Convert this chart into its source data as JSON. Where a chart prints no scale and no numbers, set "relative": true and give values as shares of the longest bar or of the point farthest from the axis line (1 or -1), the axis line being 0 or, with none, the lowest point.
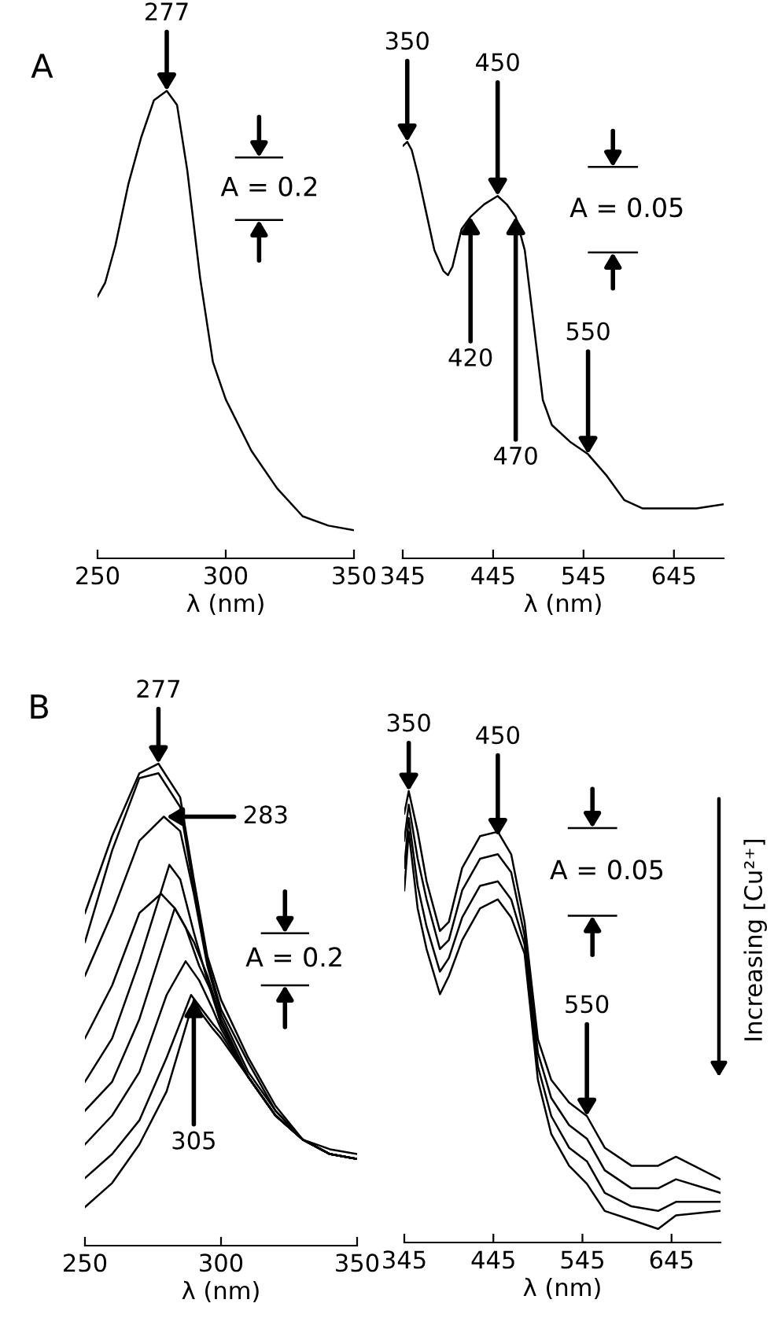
{
  "chart_data": [
    {
      "type": "line",
      "relative": true,
      "xlabel": "λ (nm)",
      "xlim": [
        250,
        350
      ],
      "xticks": [
        250,
        300,
        350
      ],
      "tick_labels": "x",
      "grid": false,
      "legend": false,
      "annotations": [
        "A",
        {
          "text": "277",
          "x": 277,
          "y": 1.0
        },
        "A = 0.2"
      ],
      "series": [
        {
          "color": "#000000",
          "x": [
            250,
            253,
            257,
            262,
            267,
            272,
            277,
            281,
            285,
            290,
            295,
            300,
            310,
            320,
            330,
            340,
            350
          ],
          "values": [
            0.56,
            0.59,
            0.67,
            0.8,
            0.9,
            0.98,
            1.0,
            0.97,
            0.83,
            0.6,
            0.42,
            0.34,
            0.23,
            0.15,
            0.09,
            0.07,
            0.06
          ]
        }
      ]
    },
    {
      "type": "line",
      "relative": true,
      "xlabel": "λ (nm)",
      "xlim": [
        345,
        700
      ],
      "xticks": [
        345,
        445,
        545,
        645
      ],
      "tick_labels": "x",
      "grid": false,
      "legend": false,
      "annotations": [
        {
          "text": "350",
          "x": 350,
          "y": 1.0
        },
        {
          "text": "450",
          "x": 450,
          "y": 0.87
        },
        {
          "text": "420",
          "x": 420,
          "y": 0.82
        },
        {
          "text": "470",
          "x": 470,
          "y": 0.82
        },
        {
          "text": "550",
          "x": 550,
          "y": 0.25
        },
        "A = 0.05"
      ],
      "series": [
        {
          "color": "#000000",
          "x": [
            345,
            350,
            355,
            362,
            370,
            380,
            390,
            395,
            400,
            410,
            420,
            435,
            450,
            460,
            470,
            480,
            490,
            500,
            510,
            530,
            550,
            570,
            590,
            610,
            630,
            650,
            670,
            700
          ],
          "values": [
            0.99,
            1.0,
            0.98,
            0.92,
            0.84,
            0.74,
            0.69,
            0.68,
            0.7,
            0.79,
            0.82,
            0.85,
            0.87,
            0.85,
            0.82,
            0.74,
            0.56,
            0.38,
            0.32,
            0.28,
            0.25,
            0.2,
            0.14,
            0.12,
            0.12,
            0.12,
            0.12,
            0.13
          ]
        }
      ]
    },
    {
      "type": "line",
      "relative": true,
      "xlabel": "λ (nm)",
      "xlim": [
        250,
        350
      ],
      "xticks": [
        250,
        300,
        350
      ],
      "tick_labels": "x",
      "grid": false,
      "legend": false,
      "annotations": [
        "B",
        {
          "text": "277",
          "x": 277,
          "y": 1.0
        },
        "283",
        {
          "text": "305",
          "x": 290,
          "y": 0.51
        },
        "A = 0.2"
      ],
      "series": [
        {
          "color": "#000000",
          "x": [
            250,
            260,
            270,
            277,
            285,
            290,
            295,
            300,
            310,
            320,
            330,
            340,
            350
          ],
          "values": [
            0.69,
            0.85,
            0.98,
            1.0,
            0.93,
            0.76,
            0.6,
            0.51,
            0.39,
            0.29,
            0.22,
            0.2,
            0.19
          ]
        },
        {
          "color": "#000000",
          "x": [
            250,
            260,
            270,
            277,
            285,
            290,
            295,
            300,
            310,
            320,
            330,
            340,
            350
          ],
          "values": [
            0.63,
            0.82,
            0.97,
            0.98,
            0.91,
            0.74,
            0.59,
            0.49,
            0.38,
            0.28,
            0.22,
            0.19,
            0.18
          ]
        },
        {
          "color": "#000000",
          "x": [
            250,
            260,
            270,
            279,
            285,
            290,
            295,
            300,
            310,
            320,
            330,
            340,
            350
          ],
          "values": [
            0.56,
            0.69,
            0.84,
            0.89,
            0.86,
            0.73,
            0.58,
            0.48,
            0.36,
            0.28,
            0.22,
            0.19,
            0.18
          ]
        },
        {
          "color": "#000000",
          "x": [
            250,
            260,
            270,
            278,
            283,
            290,
            295,
            300,
            310,
            320,
            330,
            340,
            350
          ],
          "values": [
            0.43,
            0.54,
            0.69,
            0.73,
            0.7,
            0.63,
            0.56,
            0.47,
            0.35,
            0.27,
            0.22,
            0.19,
            0.18
          ]
        },
        {
          "color": "#000000",
          "x": [
            250,
            260,
            270,
            281,
            285,
            290,
            295,
            300,
            310,
            320,
            330,
            340,
            350
          ],
          "values": [
            0.34,
            0.43,
            0.59,
            0.79,
            0.76,
            0.65,
            0.55,
            0.46,
            0.35,
            0.27,
            0.22,
            0.19,
            0.18
          ]
        },
        {
          "color": "#000000",
          "x": [
            250,
            260,
            270,
            283,
            287,
            292,
            297,
            300,
            310,
            320,
            330,
            340,
            350
          ],
          "values": [
            0.28,
            0.34,
            0.47,
            0.7,
            0.66,
            0.58,
            0.52,
            0.46,
            0.35,
            0.27,
            0.22,
            0.19,
            0.18
          ]
        },
        {
          "color": "#000000",
          "x": [
            250,
            260,
            270,
            280,
            287,
            292,
            297,
            300,
            310,
            320,
            330,
            340,
            350
          ],
          "values": [
            0.21,
            0.27,
            0.36,
            0.52,
            0.59,
            0.55,
            0.49,
            0.45,
            0.35,
            0.27,
            0.22,
            0.19,
            0.18
          ]
        },
        {
          "color": "#000000",
          "x": [
            250,
            260,
            270,
            280,
            289,
            293,
            297,
            300,
            310,
            320,
            330,
            340,
            350
          ],
          "values": [
            0.14,
            0.19,
            0.26,
            0.39,
            0.52,
            0.49,
            0.46,
            0.44,
            0.35,
            0.27,
            0.22,
            0.19,
            0.18
          ]
        },
        {
          "color": "#000000",
          "x": [
            250,
            260,
            270,
            280,
            290,
            293,
            297,
            300,
            310,
            320,
            330,
            340,
            350
          ],
          "values": [
            0.08,
            0.13,
            0.21,
            0.32,
            0.51,
            0.48,
            0.45,
            0.43,
            0.35,
            0.27,
            0.22,
            0.19,
            0.18
          ]
        }
      ]
    },
    {
      "type": "line",
      "relative": true,
      "xlabel": "λ (nm)",
      "xlim": [
        345,
        700
      ],
      "xticks": [
        345,
        445,
        545,
        645
      ],
      "tick_labels": "x",
      "grid": false,
      "legend": false,
      "annotations": [
        {
          "text": "350",
          "x": 350,
          "y": 1.0
        },
        {
          "text": "450",
          "x": 450,
          "y": 0.9
        },
        {
          "text": "550",
          "x": 550,
          "y": 0.28
        },
        "A = 0.05",
        "Increasing [Cu²⁺]"
      ],
      "series": [
        {
          "color": "#000000",
          "x": [
            345,
            350,
            360,
            370,
            385,
            395,
            410,
            430,
            450,
            465,
            480,
            495,
            510,
            530,
            550,
            570,
            600,
            630,
            650,
            700
          ],
          "values": [
            0.95,
            1.0,
            0.91,
            0.8,
            0.69,
            0.71,
            0.83,
            0.9,
            0.91,
            0.86,
            0.71,
            0.45,
            0.36,
            0.31,
            0.28,
            0.21,
            0.17,
            0.17,
            0.19,
            0.14
          ]
        },
        {
          "color": "#000000",
          "x": [
            345,
            350,
            360,
            370,
            385,
            395,
            410,
            430,
            450,
            465,
            480,
            495,
            510,
            530,
            550,
            570,
            600,
            630,
            650,
            700
          ],
          "values": [
            0.89,
            0.97,
            0.85,
            0.76,
            0.65,
            0.67,
            0.78,
            0.85,
            0.86,
            0.82,
            0.68,
            0.42,
            0.32,
            0.26,
            0.23,
            0.16,
            0.12,
            0.12,
            0.14,
            0.11
          ]
        },
        {
          "color": "#000000",
          "x": [
            345,
            350,
            360,
            370,
            385,
            395,
            410,
            430,
            450,
            465,
            480,
            495,
            510,
            530,
            550,
            570,
            600,
            630,
            650,
            700
          ],
          "values": [
            0.83,
            0.94,
            0.79,
            0.7,
            0.6,
            0.63,
            0.72,
            0.79,
            0.8,
            0.76,
            0.66,
            0.39,
            0.28,
            0.21,
            0.18,
            0.11,
            0.08,
            0.07,
            0.09,
            0.09
          ]
        },
        {
          "color": "#000000",
          "x": [
            345,
            350,
            360,
            370,
            385,
            395,
            410,
            430,
            450,
            465,
            480,
            495,
            510,
            530,
            550,
            570,
            600,
            630,
            650,
            700
          ],
          "values": [
            0.78,
            0.91,
            0.74,
            0.65,
            0.55,
            0.59,
            0.67,
            0.74,
            0.76,
            0.72,
            0.64,
            0.36,
            0.24,
            0.17,
            0.13,
            0.07,
            0.05,
            0.03,
            0.06,
            0.07
          ]
        }
      ]
    }
  ]
}
